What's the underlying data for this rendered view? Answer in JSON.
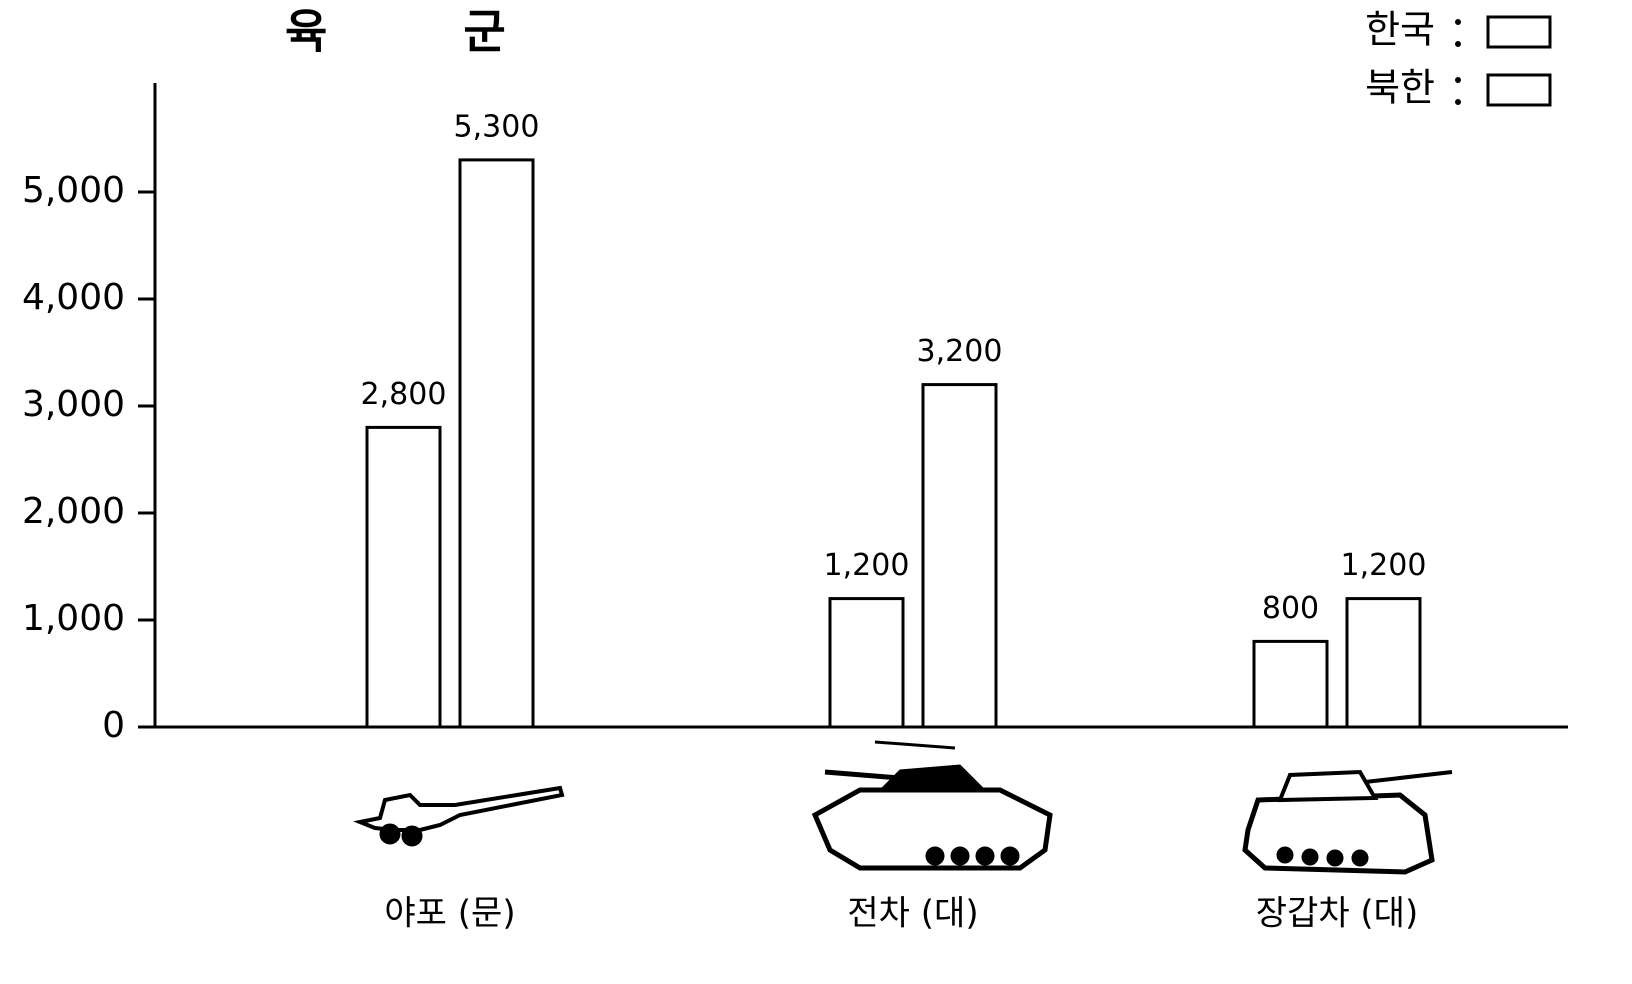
{
  "chart_data": {
    "type": "bar",
    "title": "육 군",
    "categories": [
      "야포 (문)",
      "전차 (대)",
      "장갑차 (대)"
    ],
    "series": [
      {
        "name": "한국",
        "color": "#ffffff",
        "values": [
          2800,
          1200,
          800
        ],
        "value_labels": [
          "2,800",
          "1,200",
          "800"
        ]
      },
      {
        "name": "북한",
        "color": "#ffffff",
        "values": [
          5300,
          3200,
          1200
        ],
        "value_labels": [
          "5,300",
          "3,200",
          "1,200"
        ]
      }
    ],
    "ylim": [
      0,
      6000
    ],
    "yticks": [
      0,
      {
        "value": 1000,
        "label": "1,000"
      },
      {
        "value": 2000,
        "label": "2,000"
      },
      {
        "value": 3000,
        "label": "3,000"
      },
      {
        "value": 4000,
        "label": "4,000"
      },
      {
        "value": 5000,
        "label": "5,000"
      }
    ],
    "legend": "top-right"
  }
}
